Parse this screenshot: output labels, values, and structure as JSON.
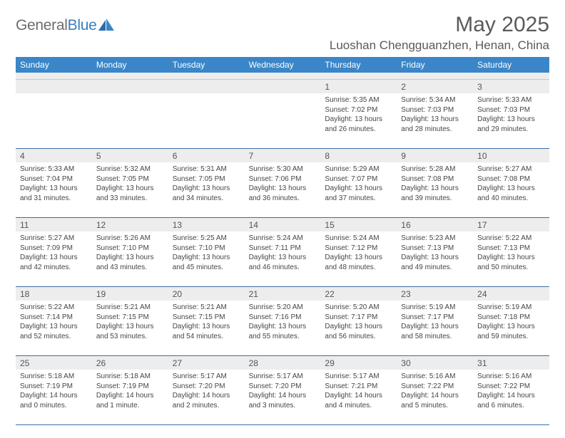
{
  "logo": {
    "text1": "General",
    "text2": "Blue"
  },
  "title": "May 2025",
  "location": "Luoshan Chengguanzhen, Henan, China",
  "dow": [
    "Sunday",
    "Monday",
    "Tuesday",
    "Wednesday",
    "Thursday",
    "Friday",
    "Saturday"
  ],
  "colors": {
    "header_bg": "#3a86c8",
    "rule": "#3a6fa5",
    "shade": "#ededed"
  },
  "weeks": [
    [
      {
        "n": "",
        "sr": "",
        "ss": "",
        "dl": ""
      },
      {
        "n": "",
        "sr": "",
        "ss": "",
        "dl": ""
      },
      {
        "n": "",
        "sr": "",
        "ss": "",
        "dl": ""
      },
      {
        "n": "",
        "sr": "",
        "ss": "",
        "dl": ""
      },
      {
        "n": "1",
        "sr": "Sunrise: 5:35 AM",
        "ss": "Sunset: 7:02 PM",
        "dl": "Daylight: 13 hours and 26 minutes."
      },
      {
        "n": "2",
        "sr": "Sunrise: 5:34 AM",
        "ss": "Sunset: 7:03 PM",
        "dl": "Daylight: 13 hours and 28 minutes."
      },
      {
        "n": "3",
        "sr": "Sunrise: 5:33 AM",
        "ss": "Sunset: 7:03 PM",
        "dl": "Daylight: 13 hours and 29 minutes."
      }
    ],
    [
      {
        "n": "4",
        "sr": "Sunrise: 5:33 AM",
        "ss": "Sunset: 7:04 PM",
        "dl": "Daylight: 13 hours and 31 minutes."
      },
      {
        "n": "5",
        "sr": "Sunrise: 5:32 AM",
        "ss": "Sunset: 7:05 PM",
        "dl": "Daylight: 13 hours and 33 minutes."
      },
      {
        "n": "6",
        "sr": "Sunrise: 5:31 AM",
        "ss": "Sunset: 7:05 PM",
        "dl": "Daylight: 13 hours and 34 minutes."
      },
      {
        "n": "7",
        "sr": "Sunrise: 5:30 AM",
        "ss": "Sunset: 7:06 PM",
        "dl": "Daylight: 13 hours and 36 minutes."
      },
      {
        "n": "8",
        "sr": "Sunrise: 5:29 AM",
        "ss": "Sunset: 7:07 PM",
        "dl": "Daylight: 13 hours and 37 minutes."
      },
      {
        "n": "9",
        "sr": "Sunrise: 5:28 AM",
        "ss": "Sunset: 7:08 PM",
        "dl": "Daylight: 13 hours and 39 minutes."
      },
      {
        "n": "10",
        "sr": "Sunrise: 5:27 AM",
        "ss": "Sunset: 7:08 PM",
        "dl": "Daylight: 13 hours and 40 minutes."
      }
    ],
    [
      {
        "n": "11",
        "sr": "Sunrise: 5:27 AM",
        "ss": "Sunset: 7:09 PM",
        "dl": "Daylight: 13 hours and 42 minutes."
      },
      {
        "n": "12",
        "sr": "Sunrise: 5:26 AM",
        "ss": "Sunset: 7:10 PM",
        "dl": "Daylight: 13 hours and 43 minutes."
      },
      {
        "n": "13",
        "sr": "Sunrise: 5:25 AM",
        "ss": "Sunset: 7:10 PM",
        "dl": "Daylight: 13 hours and 45 minutes."
      },
      {
        "n": "14",
        "sr": "Sunrise: 5:24 AM",
        "ss": "Sunset: 7:11 PM",
        "dl": "Daylight: 13 hours and 46 minutes."
      },
      {
        "n": "15",
        "sr": "Sunrise: 5:24 AM",
        "ss": "Sunset: 7:12 PM",
        "dl": "Daylight: 13 hours and 48 minutes."
      },
      {
        "n": "16",
        "sr": "Sunrise: 5:23 AM",
        "ss": "Sunset: 7:13 PM",
        "dl": "Daylight: 13 hours and 49 minutes."
      },
      {
        "n": "17",
        "sr": "Sunrise: 5:22 AM",
        "ss": "Sunset: 7:13 PM",
        "dl": "Daylight: 13 hours and 50 minutes."
      }
    ],
    [
      {
        "n": "18",
        "sr": "Sunrise: 5:22 AM",
        "ss": "Sunset: 7:14 PM",
        "dl": "Daylight: 13 hours and 52 minutes."
      },
      {
        "n": "19",
        "sr": "Sunrise: 5:21 AM",
        "ss": "Sunset: 7:15 PM",
        "dl": "Daylight: 13 hours and 53 minutes."
      },
      {
        "n": "20",
        "sr": "Sunrise: 5:21 AM",
        "ss": "Sunset: 7:15 PM",
        "dl": "Daylight: 13 hours and 54 minutes."
      },
      {
        "n": "21",
        "sr": "Sunrise: 5:20 AM",
        "ss": "Sunset: 7:16 PM",
        "dl": "Daylight: 13 hours and 55 minutes."
      },
      {
        "n": "22",
        "sr": "Sunrise: 5:20 AM",
        "ss": "Sunset: 7:17 PM",
        "dl": "Daylight: 13 hours and 56 minutes."
      },
      {
        "n": "23",
        "sr": "Sunrise: 5:19 AM",
        "ss": "Sunset: 7:17 PM",
        "dl": "Daylight: 13 hours and 58 minutes."
      },
      {
        "n": "24",
        "sr": "Sunrise: 5:19 AM",
        "ss": "Sunset: 7:18 PM",
        "dl": "Daylight: 13 hours and 59 minutes."
      }
    ],
    [
      {
        "n": "25",
        "sr": "Sunrise: 5:18 AM",
        "ss": "Sunset: 7:19 PM",
        "dl": "Daylight: 14 hours and 0 minutes."
      },
      {
        "n": "26",
        "sr": "Sunrise: 5:18 AM",
        "ss": "Sunset: 7:19 PM",
        "dl": "Daylight: 14 hours and 1 minute."
      },
      {
        "n": "27",
        "sr": "Sunrise: 5:17 AM",
        "ss": "Sunset: 7:20 PM",
        "dl": "Daylight: 14 hours and 2 minutes."
      },
      {
        "n": "28",
        "sr": "Sunrise: 5:17 AM",
        "ss": "Sunset: 7:20 PM",
        "dl": "Daylight: 14 hours and 3 minutes."
      },
      {
        "n": "29",
        "sr": "Sunrise: 5:17 AM",
        "ss": "Sunset: 7:21 PM",
        "dl": "Daylight: 14 hours and 4 minutes."
      },
      {
        "n": "30",
        "sr": "Sunrise: 5:16 AM",
        "ss": "Sunset: 7:22 PM",
        "dl": "Daylight: 14 hours and 5 minutes."
      },
      {
        "n": "31",
        "sr": "Sunrise: 5:16 AM",
        "ss": "Sunset: 7:22 PM",
        "dl": "Daylight: 14 hours and 6 minutes."
      }
    ]
  ]
}
